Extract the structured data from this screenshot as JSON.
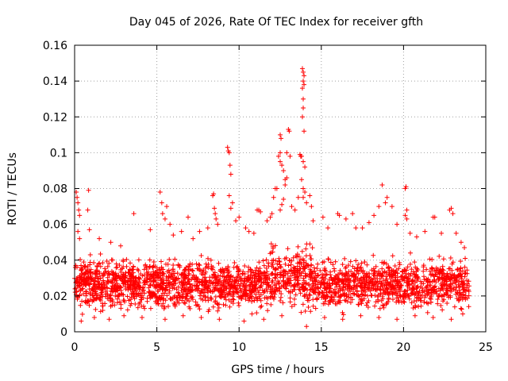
{
  "chart_data": {
    "type": "scatter",
    "title": "Day 045 of 2026, Rate Of TEC Index for receiver gfth",
    "xlabel": "GPS time / hours",
    "ylabel": "ROTI / TECUs",
    "xlim": [
      0,
      25
    ],
    "ylim": [
      0,
      0.16
    ],
    "grid": true,
    "marker": "plus",
    "color": "#ff0000",
    "x_ticks": [
      {
        "value": 0,
        "label": "0"
      },
      {
        "value": 5,
        "label": "5"
      },
      {
        "value": 10,
        "label": "10"
      },
      {
        "value": 15,
        "label": "15"
      },
      {
        "value": 20,
        "label": "20"
      },
      {
        "value": 25,
        "label": "25"
      }
    ],
    "y_ticks": [
      {
        "value": 0,
        "label": "0"
      },
      {
        "value": 0.02,
        "label": "0.02"
      },
      {
        "value": 0.04,
        "label": "0.04"
      },
      {
        "value": 0.06,
        "label": "0.06"
      },
      {
        "value": 0.08,
        "label": "0.08"
      },
      {
        "value": 0.1,
        "label": "0.1"
      },
      {
        "value": 0.12,
        "label": "0.12"
      },
      {
        "value": 0.14,
        "label": "0.14"
      },
      {
        "value": 0.16,
        "label": "0.16"
      }
    ],
    "dense_band": {
      "x_range": [
        0,
        24
      ],
      "y_range": [
        0.008,
        0.045
      ],
      "note": "thousands of points concentrated between ~0.01 and ~0.045 TECU/min across the full day"
    },
    "series": [
      {
        "name": "ROTI",
        "points": [
          [
            0.1,
            0.078
          ],
          [
            0.15,
            0.075
          ],
          [
            0.2,
            0.072
          ],
          [
            0.25,
            0.068
          ],
          [
            0.3,
            0.065
          ],
          [
            0.85,
            0.079
          ],
          [
            0.8,
            0.068
          ],
          [
            0.9,
            0.057
          ],
          [
            0.2,
            0.056
          ],
          [
            0.3,
            0.052
          ],
          [
            1.5,
            0.052
          ],
          [
            2.2,
            0.05
          ],
          [
            2.8,
            0.048
          ],
          [
            3.6,
            0.066
          ],
          [
            4.6,
            0.057
          ],
          [
            5.2,
            0.078
          ],
          [
            5.3,
            0.072
          ],
          [
            5.35,
            0.066
          ],
          [
            5.5,
            0.063
          ],
          [
            5.6,
            0.07
          ],
          [
            5.8,
            0.06
          ],
          [
            6.0,
            0.054
          ],
          [
            6.5,
            0.056
          ],
          [
            6.9,
            0.064
          ],
          [
            7.2,
            0.052
          ],
          [
            7.6,
            0.056
          ],
          [
            8.1,
            0.058
          ],
          [
            8.4,
            0.076
          ],
          [
            8.45,
            0.077
          ],
          [
            8.5,
            0.069
          ],
          [
            8.55,
            0.066
          ],
          [
            8.6,
            0.063
          ],
          [
            8.7,
            0.06
          ],
          [
            9.3,
            0.103
          ],
          [
            9.35,
            0.101
          ],
          [
            9.4,
            0.1
          ],
          [
            9.45,
            0.093
          ],
          [
            9.5,
            0.088
          ],
          [
            9.4,
            0.076
          ],
          [
            9.6,
            0.072
          ],
          [
            9.5,
            0.069
          ],
          [
            9.8,
            0.062
          ],
          [
            10.0,
            0.064
          ],
          [
            10.4,
            0.058
          ],
          [
            10.6,
            0.056
          ],
          [
            10.9,
            0.055
          ],
          [
            11.1,
            0.068
          ],
          [
            11.2,
            0.068
          ],
          [
            11.3,
            0.067
          ],
          [
            11.7,
            0.062
          ],
          [
            11.9,
            0.064
          ],
          [
            12.0,
            0.066
          ],
          [
            12.1,
            0.075
          ],
          [
            12.2,
            0.08
          ],
          [
            12.3,
            0.08
          ],
          [
            12.4,
            0.098
          ],
          [
            12.5,
            0.11
          ],
          [
            12.55,
            0.108
          ],
          [
            12.5,
            0.1
          ],
          [
            12.5,
            0.095
          ],
          [
            12.6,
            0.093
          ],
          [
            12.7,
            0.09
          ],
          [
            12.8,
            0.085
          ],
          [
            12.9,
            0.086
          ],
          [
            12.8,
            0.082
          ],
          [
            12.7,
            0.074
          ],
          [
            12.6,
            0.071
          ],
          [
            12.5,
            0.068
          ],
          [
            13.0,
            0.113
          ],
          [
            13.05,
            0.112
          ],
          [
            12.9,
            0.1
          ],
          [
            13.1,
            0.098
          ],
          [
            13.2,
            0.07
          ],
          [
            13.4,
            0.068
          ],
          [
            13.6,
            0.075
          ],
          [
            13.7,
            0.099
          ],
          [
            13.75,
            0.098
          ],
          [
            13.8,
            0.098
          ],
          [
            13.85,
            0.147
          ],
          [
            13.9,
            0.145
          ],
          [
            13.95,
            0.143
          ],
          [
            13.9,
            0.14
          ],
          [
            13.95,
            0.138
          ],
          [
            13.85,
            0.136
          ],
          [
            13.9,
            0.13
          ],
          [
            13.9,
            0.125
          ],
          [
            13.85,
            0.12
          ],
          [
            13.95,
            0.112
          ],
          [
            13.9,
            0.095
          ],
          [
            14.0,
            0.092
          ],
          [
            13.8,
            0.085
          ],
          [
            13.9,
            0.08
          ],
          [
            14.0,
            0.078
          ],
          [
            13.9,
            0.075
          ],
          [
            14.1,
            0.072
          ],
          [
            14.3,
            0.076
          ],
          [
            14.4,
            0.07
          ],
          [
            14.5,
            0.062
          ],
          [
            15.1,
            0.064
          ],
          [
            15.4,
            0.058
          ],
          [
            16.0,
            0.066
          ],
          [
            16.1,
            0.065
          ],
          [
            16.5,
            0.063
          ],
          [
            16.9,
            0.066
          ],
          [
            17.1,
            0.058
          ],
          [
            17.5,
            0.058
          ],
          [
            17.9,
            0.061
          ],
          [
            18.2,
            0.065
          ],
          [
            18.5,
            0.07
          ],
          [
            18.7,
            0.082
          ],
          [
            18.9,
            0.072
          ],
          [
            19.0,
            0.075
          ],
          [
            19.3,
            0.07
          ],
          [
            19.6,
            0.06
          ],
          [
            20.1,
            0.08
          ],
          [
            20.15,
            0.081
          ],
          [
            20.2,
            0.068
          ],
          [
            20.1,
            0.065
          ],
          [
            20.2,
            0.063
          ],
          [
            20.4,
            0.055
          ],
          [
            20.8,
            0.053
          ],
          [
            21.3,
            0.056
          ],
          [
            21.8,
            0.064
          ],
          [
            21.9,
            0.064
          ],
          [
            22.3,
            0.055
          ],
          [
            22.8,
            0.068
          ],
          [
            22.9,
            0.069
          ],
          [
            23.0,
            0.066
          ],
          [
            23.2,
            0.055
          ],
          [
            23.5,
            0.05
          ],
          [
            23.7,
            0.047
          ],
          [
            0.4,
            0.006
          ],
          [
            1.2,
            0.008
          ],
          [
            2.1,
            0.007
          ],
          [
            3.0,
            0.009
          ],
          [
            4.1,
            0.008
          ],
          [
            5.5,
            0.007
          ],
          [
            6.6,
            0.009
          ],
          [
            7.7,
            0.008
          ],
          [
            8.8,
            0.007
          ],
          [
            10.3,
            0.006
          ],
          [
            11.5,
            0.007
          ],
          [
            12.6,
            0.009
          ],
          [
            14.1,
            0.003
          ],
          [
            15.2,
            0.008
          ],
          [
            16.3,
            0.007
          ],
          [
            17.4,
            0.009
          ],
          [
            18.5,
            0.008
          ],
          [
            19.6,
            0.007
          ],
          [
            20.7,
            0.009
          ],
          [
            21.8,
            0.008
          ],
          [
            22.9,
            0.007
          ],
          [
            23.6,
            0.01
          ]
        ]
      }
    ]
  }
}
